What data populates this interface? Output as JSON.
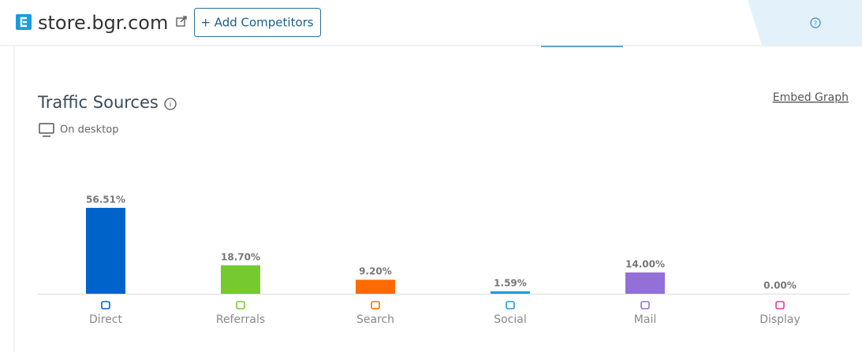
{
  "header": {
    "site": "store.bgr.com",
    "add_button": "+ Add Competitors"
  },
  "chart_data": {
    "type": "bar",
    "title": "Traffic Sources",
    "subtitle": "On desktop",
    "link": "Embed Graph",
    "categories": [
      "Direct",
      "Referrals",
      "Search",
      "Social",
      "Mail",
      "Display"
    ],
    "values": [
      56.51,
      18.7,
      9.2,
      1.59,
      14.0,
      0.0
    ],
    "value_labels": [
      "56.51%",
      "18.70%",
      "9.20%",
      "1.59%",
      "14.00%",
      "0.00%"
    ],
    "colors": [
      "#0063c9",
      "#76c92f",
      "#ff6b00",
      "#1e9be8",
      "#9270d8",
      "#e639a8"
    ],
    "ylim": [
      0,
      100
    ]
  }
}
